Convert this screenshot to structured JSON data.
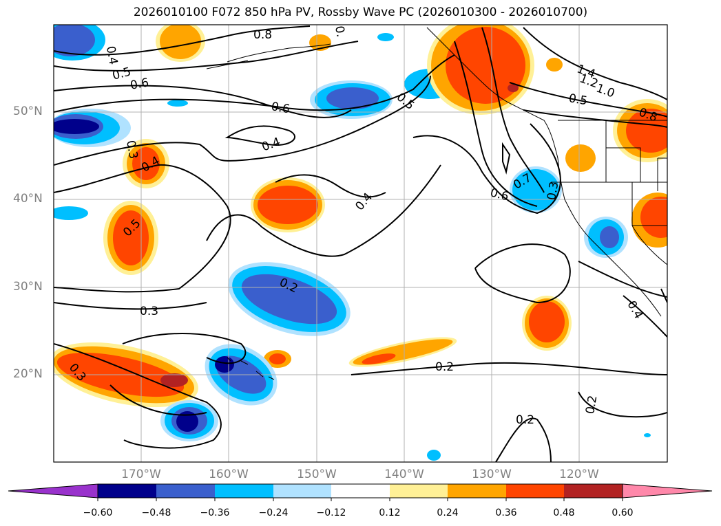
{
  "title": "2026010100 F072 850 hPa PV, Rossby Wave PC (2026010300 - 2026010700)",
  "map": {
    "projection": "PlateCarree",
    "lon_range": [
      -180,
      -110
    ],
    "lat_range": [
      10,
      60
    ],
    "gridlines": true,
    "lat_labels": [
      "50°N",
      "40°N",
      "30°N",
      "20°N"
    ],
    "lon_labels": [
      "170°W",
      "160°W",
      "150°W",
      "140°W",
      "130°W",
      "120°W"
    ]
  },
  "contour_labels": [
    "0.8",
    "0.4",
    "0.5",
    "0.6",
    "0.6",
    "0.5",
    "0.4",
    "0.3",
    "0.4",
    "0.5",
    "0.4",
    "0.2",
    "0.3",
    "0.3",
    "0.2",
    "0.2",
    "0.2",
    "1.4",
    "1.2",
    "1.0",
    "0.5",
    "0.8",
    "0.6",
    "0.7",
    "0.3",
    "0.4",
    "0."
  ],
  "colorbar": {
    "ticks": [
      "−0.60",
      "−0.48",
      "−0.36",
      "−0.24",
      "−0.12",
      "0.12",
      "0.24",
      "0.36",
      "0.48",
      "0.60"
    ],
    "colors": [
      "#9932cc",
      "#00008b",
      "#3a5fcd",
      "#00bfff",
      "#b0e2ff",
      "#ffffff",
      "#fff096",
      "#ffa500",
      "#ff4500",
      "#b22222",
      "#ff88aa"
    ]
  }
}
